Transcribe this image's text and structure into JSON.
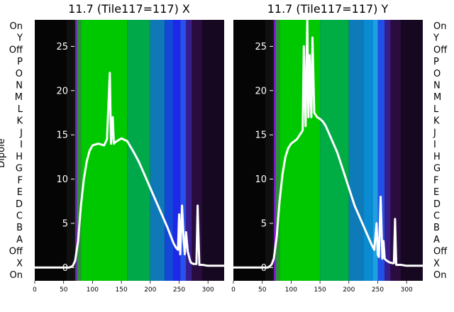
{
  "chart_data": [
    {
      "type": "heatmap",
      "title": "11.7 (Tile117=117) X",
      "ylabel": "Dipole",
      "categories": [
        "On",
        "Y",
        "Off",
        "P",
        "O",
        "N",
        "M",
        "L",
        "K",
        "J",
        "I",
        "H",
        "G",
        "F",
        "E",
        "D",
        "C",
        "B",
        "A",
        "Off",
        "X",
        "On"
      ],
      "xticks": [
        0,
        50,
        100,
        150,
        200,
        250,
        300
      ],
      "xlim": [
        0,
        328
      ],
      "overlay_yticks": [
        0,
        5,
        10,
        15,
        20,
        25
      ],
      "overlay_ylim": [
        -1.5,
        28
      ],
      "overlay_line": {
        "color": "#ffffff",
        "x": [
          0,
          60,
          66,
          70,
          75,
          80,
          85,
          90,
          95,
          100,
          110,
          120,
          125,
          130,
          132,
          135,
          137,
          140,
          150,
          160,
          170,
          180,
          190,
          200,
          210,
          220,
          230,
          240,
          244,
          248,
          250,
          252,
          255,
          258,
          260,
          262,
          265,
          268,
          270,
          272,
          275,
          280,
          282,
          285,
          290,
          300,
          310,
          320,
          328
        ],
        "y": [
          0,
          0,
          0.2,
          0.8,
          3,
          7,
          10,
          12,
          13.2,
          13.8,
          14,
          13.8,
          14.5,
          22,
          14,
          17,
          14,
          14.2,
          14.6,
          14.3,
          13.2,
          12,
          10.5,
          9,
          7.5,
          6,
          4.5,
          2.8,
          2.3,
          2,
          6,
          1.5,
          7,
          3,
          1.5,
          4,
          1.8,
          1,
          0.6,
          0.5,
          0.4,
          0.4,
          7,
          0.3,
          0.3,
          0.2,
          0.2,
          0.2,
          0.2
        ]
      },
      "columns": [
        {
          "x": [
            0,
            55
          ],
          "color": "#050505"
        },
        {
          "x": [
            55,
            66
          ],
          "color": "#101010"
        },
        {
          "x": [
            66,
            70
          ],
          "color": "#141414"
        },
        {
          "x": [
            70,
            73
          ],
          "color": "#7a18c8"
        },
        {
          "x": [
            73,
            80
          ],
          "color": "#2d8f3a"
        },
        {
          "x": [
            80,
            160
          ],
          "color": "#00c800"
        },
        {
          "x": [
            160,
            200
          ],
          "color": "#00a84a"
        },
        {
          "x": [
            200,
            225
          ],
          "color": "#0f78b6"
        },
        {
          "x": [
            225,
            240
          ],
          "color": "#1448d8"
        },
        {
          "x": [
            240,
            252
          ],
          "color": "#1e28e8"
        },
        {
          "x": [
            252,
            262
          ],
          "color": "#2850f0"
        },
        {
          "x": [
            262,
            272
          ],
          "color": "#3a1d8c"
        },
        {
          "x": [
            272,
            290
          ],
          "color": "#2a0c3e"
        },
        {
          "x": [
            290,
            328
          ],
          "color": "#160820"
        }
      ]
    },
    {
      "type": "heatmap",
      "title": "11.7 (Tile117=117) Y",
      "categories": [
        "On",
        "Y",
        "Off",
        "P",
        "O",
        "N",
        "M",
        "L",
        "K",
        "J",
        "I",
        "H",
        "G",
        "F",
        "E",
        "D",
        "C",
        "B",
        "A",
        "Off",
        "X",
        "On"
      ],
      "xticks": [
        0,
        50,
        100,
        150,
        200,
        250,
        300
      ],
      "xlim": [
        0,
        328
      ],
      "overlay_yticks": [
        0,
        5,
        10,
        15,
        20,
        25
      ],
      "overlay_ylim": [
        -1.5,
        28
      ],
      "overlay_line": {
        "color": "#ffffff",
        "x": [
          0,
          60,
          66,
          70,
          75,
          80,
          85,
          90,
          95,
          100,
          110,
          115,
          120,
          122,
          125,
          128,
          130,
          132,
          135,
          137,
          140,
          145,
          150,
          155,
          160,
          170,
          180,
          190,
          200,
          210,
          220,
          230,
          240,
          244,
          248,
          250,
          252,
          255,
          258,
          260,
          262,
          265,
          270,
          275,
          278,
          280,
          282,
          285,
          290,
          300,
          310,
          320,
          328
        ],
        "y": [
          0,
          0,
          0.3,
          1,
          3.5,
          7.5,
          10.5,
          12.5,
          13.5,
          14,
          14.5,
          15,
          15.5,
          25,
          16,
          28,
          17,
          24,
          17,
          26,
          17.5,
          17,
          16.8,
          16.5,
          16,
          14.5,
          13,
          11,
          9,
          7,
          5.5,
          4,
          2.5,
          2,
          5,
          1.5,
          1.2,
          8,
          1,
          3,
          1,
          0.8,
          0.6,
          0.5,
          0.5,
          5.5,
          0.3,
          0.3,
          0.3,
          0.2,
          0.2,
          0.2,
          0.2
        ]
      },
      "columns": [
        {
          "x": [
            0,
            55
          ],
          "color": "#050505"
        },
        {
          "x": [
            55,
            66
          ],
          "color": "#101010"
        },
        {
          "x": [
            66,
            70
          ],
          "color": "#141414"
        },
        {
          "x": [
            70,
            73
          ],
          "color": "#7a18c8"
        },
        {
          "x": [
            73,
            80
          ],
          "color": "#2d8f3a"
        },
        {
          "x": [
            80,
            150
          ],
          "color": "#00c800"
        },
        {
          "x": [
            150,
            200
          ],
          "color": "#00ac44"
        },
        {
          "x": [
            200,
            225
          ],
          "color": "#0f7ab8"
        },
        {
          "x": [
            225,
            242
          ],
          "color": "#0a8ad0"
        },
        {
          "x": [
            242,
            250
          ],
          "color": "#1fa0e0"
        },
        {
          "x": [
            250,
            262
          ],
          "color": "#2050e8"
        },
        {
          "x": [
            262,
            272
          ],
          "color": "#3a1d8c"
        },
        {
          "x": [
            272,
            290
          ],
          "color": "#2a0c3e"
        },
        {
          "x": [
            290,
            328
          ],
          "color": "#160820"
        }
      ]
    }
  ]
}
